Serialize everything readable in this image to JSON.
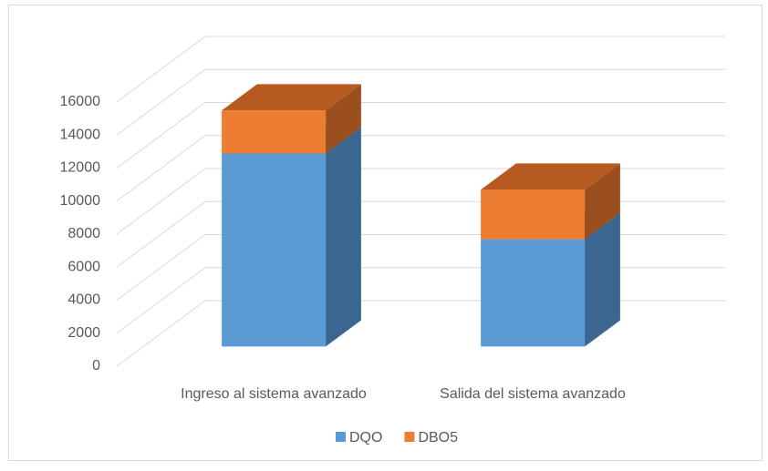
{
  "chart_data": {
    "type": "bar3d_stacked",
    "categories": [
      "Ingreso al sistema avanzado",
      "Salida del sistema avanzado"
    ],
    "series": [
      {
        "name": "DQO",
        "color": "#5b9bd5",
        "side_color": "#3a6690",
        "top_color": "#4a82b5",
        "values": [
          11700,
          6500
        ]
      },
      {
        "name": "DBO5",
        "color": "#ed7d31",
        "side_color": "#9c4f1e",
        "top_color": "#b65a21",
        "values": [
          2600,
          3000
        ]
      }
    ],
    "ylim": [
      0,
      16000
    ],
    "yticks": [
      0,
      2000,
      4000,
      6000,
      8000,
      10000,
      12000,
      14000,
      16000
    ],
    "grid": true,
    "legend": "bottom"
  }
}
